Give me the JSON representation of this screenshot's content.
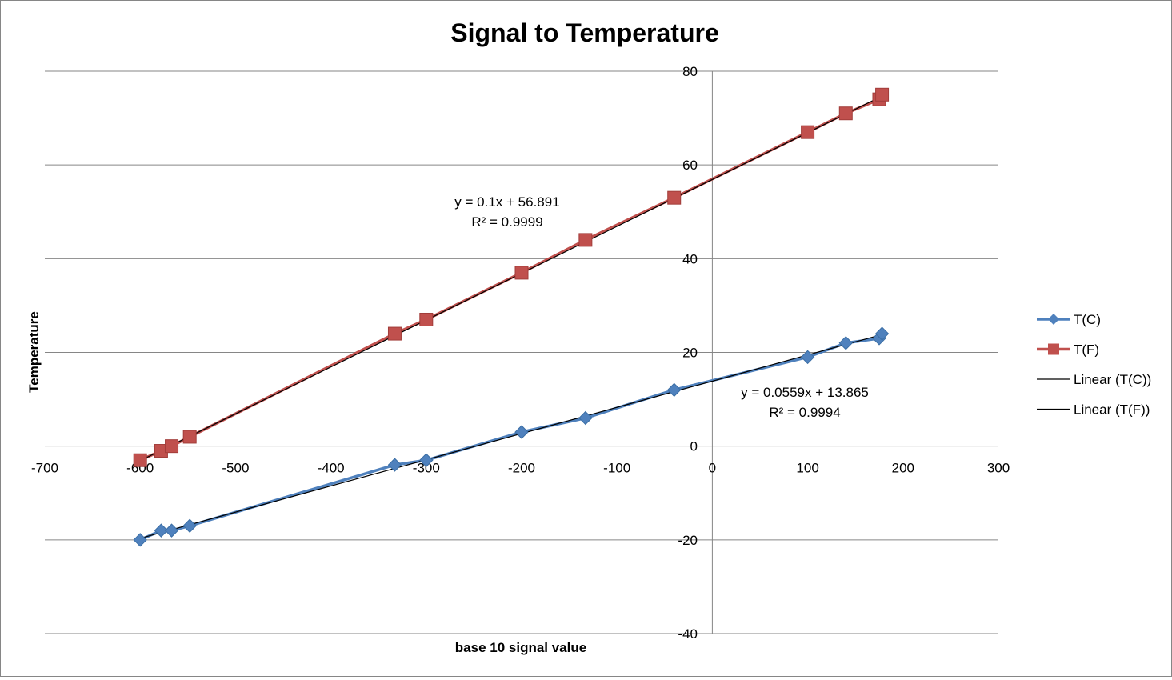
{
  "chart_data": {
    "type": "scatter",
    "title": "Signal to Temperature",
    "xlabel": "base 10 signal value",
    "ylabel": "Temperature",
    "xlim": [
      -700,
      300
    ],
    "ylim": [
      -40,
      80
    ],
    "x_ticks": [
      "-700",
      "-600",
      "-500",
      "-400",
      "-300",
      "-200",
      "-100",
      "0",
      "100",
      "200",
      "300"
    ],
    "y_ticks": [
      "-40",
      "-20",
      "0",
      "20",
      "40",
      "60",
      "80"
    ],
    "grid": "horizontal major",
    "legend_position": "right",
    "series": [
      {
        "name": "T(C)",
        "marker": "diamond",
        "color": "#4F81BD",
        "x": [
          -600,
          -578,
          -567,
          -548,
          -333,
          -300,
          -200,
          -133,
          -40,
          100,
          140,
          175,
          178
        ],
        "y": [
          -20,
          -18,
          -18,
          -17,
          -4,
          -3,
          3,
          6,
          12,
          19,
          22,
          23,
          24
        ]
      },
      {
        "name": "T(F)",
        "marker": "square",
        "color": "#C0504D",
        "x": [
          -600,
          -578,
          -567,
          -548,
          -333,
          -300,
          -200,
          -133,
          -40,
          100,
          140,
          175,
          178
        ],
        "y": [
          -3,
          -1,
          0,
          2,
          24,
          27,
          37,
          44,
          53,
          67,
          71,
          74,
          75
        ]
      }
    ],
    "trendlines": [
      {
        "name": "Linear (T(C))",
        "slope": 0.0559,
        "intercept": 13.865,
        "x_range": [
          -600,
          178
        ],
        "equation": "y = 0.0559x + 13.865",
        "r2": "R² = 0.9994",
        "color": "#000000"
      },
      {
        "name": "Linear (T(F))",
        "slope": 0.1,
        "intercept": 56.891,
        "x_range": [
          -600,
          178
        ],
        "equation": "y = 0.1x + 56.891",
        "r2": "R² = 0.9999",
        "color": "#000000"
      }
    ]
  }
}
